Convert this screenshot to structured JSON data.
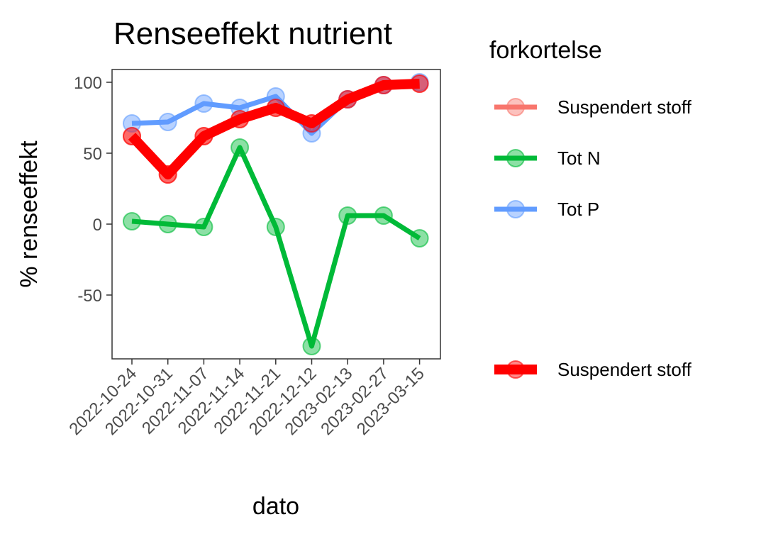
{
  "chart_data": {
    "type": "line",
    "title": "Renseeffekt nutrient",
    "xlabel": "dato",
    "ylabel": "% renseeffekt",
    "x": [
      "2022-10-24",
      "2022-10-31",
      "2022-11-07",
      "2022-11-14",
      "2022-11-21",
      "2022-12-12",
      "2023-02-13",
      "2023-02-27",
      "2023-03-15"
    ],
    "ylim": [
      -95,
      109
    ],
    "yticks": [
      -50,
      0,
      50,
      100
    ],
    "grid": false,
    "legend_position": "right",
    "legend_title": "forkortelse",
    "series": [
      {
        "name": "Suspendert stoff",
        "color": "#f8766d",
        "values": [
          62,
          35,
          62,
          74,
          82,
          71,
          88,
          98,
          99
        ],
        "highlight": false
      },
      {
        "name": "Tot N",
        "color": "#00ba38",
        "values": [
          2,
          0,
          -2,
          54,
          -2,
          -86,
          6,
          6,
          -10
        ],
        "highlight": false
      },
      {
        "name": "Tot P",
        "color": "#619cff",
        "values": [
          71,
          72,
          85,
          82,
          90,
          64,
          88,
          98,
          100
        ],
        "highlight": false
      },
      {
        "name": "Suspendert stoff",
        "color": "#ff0000",
        "values": [
          62,
          35,
          62,
          74,
          82,
          71,
          88,
          98,
          99
        ],
        "highlight": true
      }
    ]
  }
}
